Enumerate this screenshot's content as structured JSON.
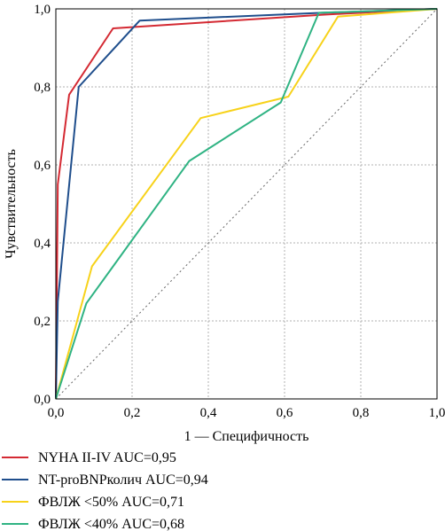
{
  "chart_data": {
    "type": "line",
    "title": "",
    "xlabel": "1 — Специфичность",
    "ylabel": "Чувствительность",
    "xlim": [
      0,
      1
    ],
    "ylim": [
      0,
      1
    ],
    "grid": true,
    "xticks": [
      "0,0",
      "0,2",
      "0,4",
      "0,6",
      "0,8",
      "1,0"
    ],
    "yticks": [
      "0,0",
      "0,2",
      "0,4",
      "0,6",
      "0,8",
      "1,0"
    ],
    "reference_line": {
      "x": [
        0,
        1
      ],
      "y": [
        0,
        1
      ],
      "style": "dotted",
      "color": "#666666"
    },
    "legend_position": "bottom",
    "series": [
      {
        "name": "NYHA II-IV AUC=0,95",
        "color": "#d42a33",
        "points": [
          [
            0,
            0
          ],
          [
            0.005,
            0.55
          ],
          [
            0.035,
            0.78
          ],
          [
            0.15,
            0.95
          ],
          [
            0.7,
            0.985
          ],
          [
            1,
            1
          ]
        ]
      },
      {
        "name": "NT-proBNPколич AUC=0,94",
        "color": "#1f4e8c",
        "points": [
          [
            0,
            0
          ],
          [
            0.005,
            0.25
          ],
          [
            0.06,
            0.8
          ],
          [
            0.22,
            0.97
          ],
          [
            0.7,
            0.99
          ],
          [
            1,
            1
          ]
        ]
      },
      {
        "name": "ФВЛЖ <50% AUC=0,71",
        "color": "#f7d21a",
        "points": [
          [
            0,
            0
          ],
          [
            0.095,
            0.34
          ],
          [
            0.38,
            0.72
          ],
          [
            0.61,
            0.775
          ],
          [
            0.74,
            0.98
          ],
          [
            1,
            1
          ]
        ]
      },
      {
        "name": "ФВЛЖ <40% AUC=0,68",
        "color": "#2fb383",
        "points": [
          [
            0,
            0
          ],
          [
            0.08,
            0.245
          ],
          [
            0.35,
            0.61
          ],
          [
            0.59,
            0.76
          ],
          [
            0.69,
            0.99
          ],
          [
            1,
            1
          ]
        ]
      }
    ]
  }
}
